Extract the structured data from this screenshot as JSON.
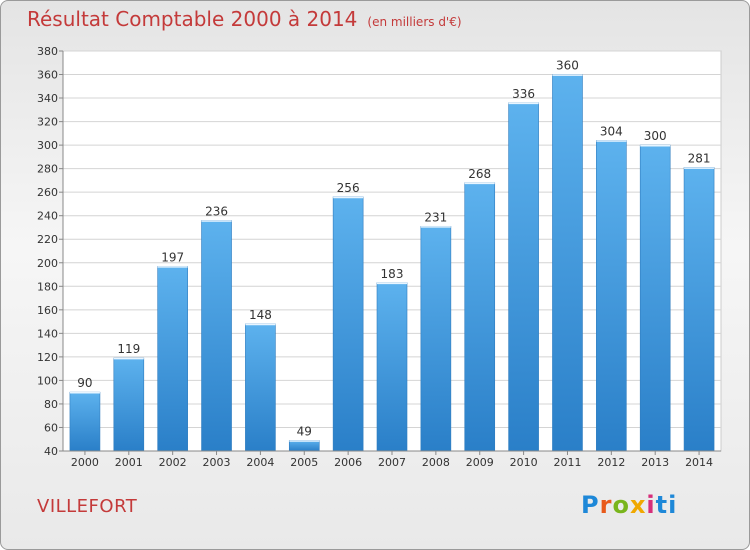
{
  "header": {
    "title": "Résultat Comptable 2000 à 2014",
    "subtitle": "(en milliers d'€)"
  },
  "commune": "VILLEFORT",
  "logo": {
    "letters": [
      "P",
      "r",
      "o",
      "x",
      "i",
      "ti"
    ]
  },
  "chart_data": {
    "type": "bar",
    "title": "Résultat Comptable 2000 à 2014",
    "subtitle": "(en milliers d'€)",
    "categories": [
      "2000",
      "2001",
      "2002",
      "2003",
      "2004",
      "2005",
      "2006",
      "2007",
      "2008",
      "2009",
      "2010",
      "2011",
      "2012",
      "2013",
      "2014"
    ],
    "values": [
      90,
      119,
      197,
      236,
      148,
      49,
      256,
      183,
      231,
      268,
      336,
      360,
      304,
      300,
      281
    ],
    "ylim": [
      40,
      380
    ],
    "yticks": [
      40,
      60,
      80,
      100,
      120,
      140,
      160,
      180,
      200,
      220,
      240,
      260,
      280,
      300,
      320,
      340,
      360,
      380
    ],
    "grid": true,
    "bar_color": "#4aa1e2",
    "data_labels": true
  }
}
